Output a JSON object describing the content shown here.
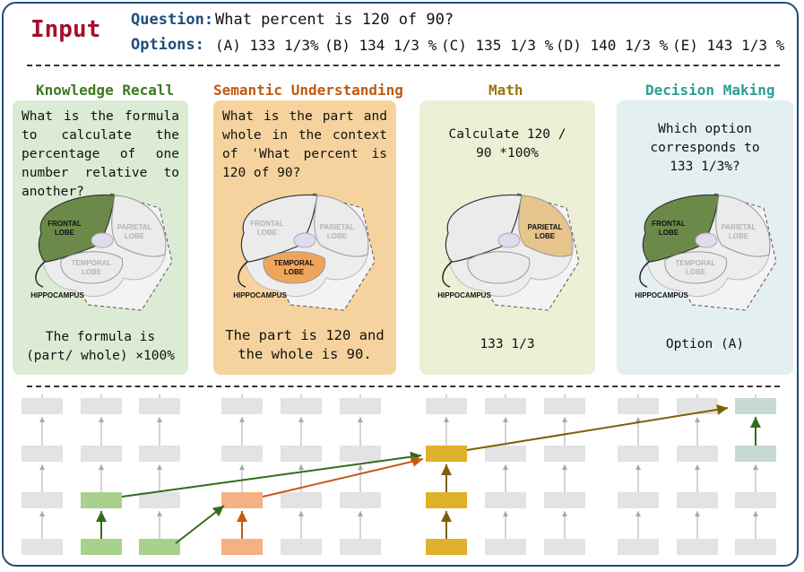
{
  "input": {
    "title": "Input",
    "question_label": "Question:",
    "question_text": "What percent is 120 of 90?",
    "options_label": "Options:",
    "options": [
      "(A) 133 1/3%",
      "(B) 134 1/3 %",
      "(C) 135 1/3 %",
      "(D) 140 1/3 %",
      "(E) 143 1/3 %"
    ]
  },
  "stages": [
    {
      "title": "Knowledge Recall",
      "title_color": "#3b7a1e",
      "bg": "#dcebd3",
      "question": "What is the formula to calculate the percentage of one number relative to another?",
      "answer": "The formula is (part/ whole) ×100%",
      "brain_labels": [
        "FRONTAL",
        "LOBE",
        "PARIETAL",
        "LOBE",
        "TEMPORAL",
        "LOBE",
        "HIPPOCAMPUS"
      ]
    },
    {
      "title": "Semantic Understanding",
      "title_color": "#c05a12",
      "bg": "#f6d39e",
      "question": "What is the part and whole in the context of 'What percent is 120 of 90?",
      "answer": "The part is 120 and the whole is 90.",
      "brain_labels": [
        "FRONTAL",
        "LOBE",
        "PARIETAL",
        "LOBE",
        "TEMPORAL",
        "LOBE",
        "HIPPOCAMPUS"
      ]
    },
    {
      "title": "Math",
      "title_color": "#9a7410",
      "bg": "#eef0d6",
      "question": "Calculate 120 / 90 *100%",
      "answer": "133 1/3",
      "brain_labels": [
        "PARIETAL",
        "LOBE",
        "HIPPOCAMPUS"
      ]
    },
    {
      "title": "Decision Making",
      "title_color": "#2b9e94",
      "bg": "#e4eff2",
      "question": "Which option corresponds to 133 1/3%?",
      "answer": "Option (A)",
      "brain_labels": [
        "FRONTAL",
        "LOBE",
        "PARIETAL",
        "LOBE",
        "TEMPORAL",
        "LOBE",
        "HIPPOCAMPUS"
      ]
    }
  ],
  "colors": {
    "frame": "#1f4e79",
    "grey_block": "#e3e3e3",
    "green": "#a9d18e",
    "orange": "#f4b183",
    "gold": "#dfb12a",
    "teal": "#c5d9d5",
    "green_arrow": "#2f6e1c",
    "orange_arrow": "#c55a11",
    "gold_arrow": "#7f6000"
  }
}
